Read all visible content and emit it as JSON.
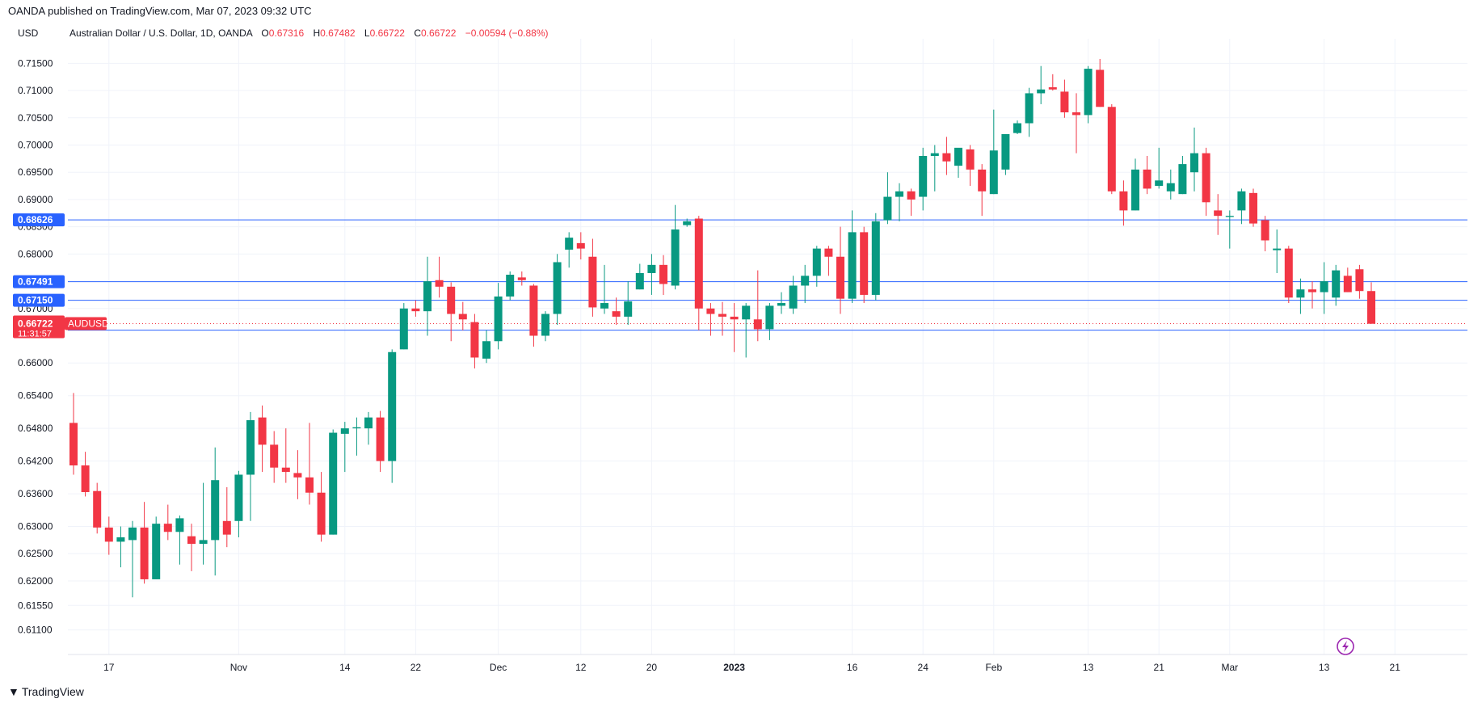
{
  "header": {
    "published": "OANDA published on TradingView.com, Mar 07, 2023 09:32 UTC",
    "currency": "USD",
    "instrument": "Australian Dollar / U.S. Dollar, 1D, OANDA",
    "o_label": "O",
    "o_value": "0.67316",
    "h_label": "H",
    "h_value": "0.67482",
    "l_label": "L",
    "l_value": "0.66722",
    "c_label": "C",
    "c_value": "0.66722",
    "change": "−0.00594 (−0.88%)"
  },
  "footer": {
    "brand": "TradingView"
  },
  "colors": {
    "up": "#089981",
    "down": "#f23645",
    "line": "#2962ff",
    "grid": "#f0f3fa"
  },
  "chart_data": {
    "type": "candlestick",
    "symbol": "AUDUSD",
    "ylim": [
      0.6065,
      0.7195
    ],
    "y_ticks": [
      "0.61100",
      "0.61550",
      "0.62000",
      "0.62500",
      "0.63000",
      "0.63600",
      "0.64200",
      "0.64800",
      "0.65400",
      "0.66000",
      "0.67000",
      "0.68000",
      "0.68500",
      "0.69000",
      "0.69500",
      "0.70000",
      "0.70500",
      "0.71000",
      "0.71500"
    ],
    "x_ticks": [
      {
        "label": "17",
        "index": 3
      },
      {
        "label": "Nov",
        "index": 14
      },
      {
        "label": "14",
        "index": 23
      },
      {
        "label": "22",
        "index": 29
      },
      {
        "label": "Dec",
        "index": 36
      },
      {
        "label": "12",
        "index": 43
      },
      {
        "label": "20",
        "index": 49
      },
      {
        "label": "2023",
        "index": 56,
        "bold": true
      },
      {
        "label": "16",
        "index": 66
      },
      {
        "label": "24",
        "index": 72
      },
      {
        "label": "Feb",
        "index": 78
      },
      {
        "label": "13",
        "index": 86
      },
      {
        "label": "21",
        "index": 92
      },
      {
        "label": "Mar",
        "index": 98
      },
      {
        "label": "13",
        "index": 106
      },
      {
        "label": "21",
        "index": 112
      }
    ],
    "horizontal_lines": [
      "0.68626",
      "0.67491",
      "0.67150",
      "0.66603"
    ],
    "last_price": "0.66722",
    "countdown": "11:31:57",
    "candles": [
      [
        0.649,
        0.6545,
        0.6395,
        0.6412
      ],
      [
        0.6412,
        0.6437,
        0.6355,
        0.6363
      ],
      [
        0.6365,
        0.638,
        0.6287,
        0.6298
      ],
      [
        0.6298,
        0.6318,
        0.6248,
        0.6272
      ],
      [
        0.6272,
        0.63,
        0.6225,
        0.628
      ],
      [
        0.6275,
        0.631,
        0.617,
        0.6298
      ],
      [
        0.6298,
        0.6345,
        0.6195,
        0.6203
      ],
      [
        0.6203,
        0.6318,
        0.6203,
        0.6305
      ],
      [
        0.6305,
        0.634,
        0.6275,
        0.629
      ],
      [
        0.629,
        0.632,
        0.623,
        0.6315
      ],
      [
        0.6282,
        0.6305,
        0.6218,
        0.6268
      ],
      [
        0.6268,
        0.638,
        0.623,
        0.6275
      ],
      [
        0.6275,
        0.6445,
        0.621,
        0.6385
      ],
      [
        0.631,
        0.6372,
        0.6262,
        0.6285
      ],
      [
        0.631,
        0.6402,
        0.628,
        0.6395
      ],
      [
        0.6395,
        0.651,
        0.631,
        0.6495
      ],
      [
        0.65,
        0.6522,
        0.64,
        0.645
      ],
      [
        0.645,
        0.6475,
        0.638,
        0.6408
      ],
      [
        0.6408,
        0.648,
        0.638,
        0.64
      ],
      [
        0.6398,
        0.644,
        0.635,
        0.639
      ],
      [
        0.639,
        0.649,
        0.634,
        0.6362
      ],
      [
        0.6362,
        0.64,
        0.6272,
        0.6285
      ],
      [
        0.6285,
        0.6478,
        0.6285,
        0.6472
      ],
      [
        0.647,
        0.6492,
        0.64,
        0.648
      ],
      [
        0.648,
        0.65,
        0.643,
        0.6482
      ],
      [
        0.648,
        0.651,
        0.645,
        0.65
      ],
      [
        0.65,
        0.6512,
        0.64,
        0.642
      ],
      [
        0.642,
        0.6625,
        0.638,
        0.662
      ],
      [
        0.6625,
        0.671,
        0.6625,
        0.67
      ],
      [
        0.67,
        0.6715,
        0.6685,
        0.6695
      ],
      [
        0.6695,
        0.6795,
        0.665,
        0.675
      ],
      [
        0.6752,
        0.6795,
        0.672,
        0.674
      ],
      [
        0.674,
        0.6748,
        0.664,
        0.669
      ],
      [
        0.669,
        0.6712,
        0.666,
        0.668
      ],
      [
        0.6675,
        0.669,
        0.659,
        0.661
      ],
      [
        0.6608,
        0.666,
        0.66,
        0.664
      ],
      [
        0.664,
        0.6747,
        0.6625,
        0.6722
      ],
      [
        0.6722,
        0.6768,
        0.6715,
        0.6762
      ],
      [
        0.6757,
        0.6768,
        0.6742,
        0.6752
      ],
      [
        0.6742,
        0.6745,
        0.663,
        0.665
      ],
      [
        0.665,
        0.6695,
        0.664,
        0.669
      ],
      [
        0.669,
        0.68,
        0.667,
        0.6785
      ],
      [
        0.6808,
        0.684,
        0.6775,
        0.683
      ],
      [
        0.682,
        0.684,
        0.679,
        0.681
      ],
      [
        0.6795,
        0.6828,
        0.6685,
        0.6702
      ],
      [
        0.67,
        0.678,
        0.669,
        0.671
      ],
      [
        0.6695,
        0.672,
        0.667,
        0.6685
      ],
      [
        0.6685,
        0.675,
        0.667,
        0.6713
      ],
      [
        0.6735,
        0.6782,
        0.6735,
        0.6765
      ],
      [
        0.6765,
        0.68,
        0.6725,
        0.678
      ],
      [
        0.678,
        0.6798,
        0.6725,
        0.6745
      ],
      [
        0.6742,
        0.689,
        0.6735,
        0.6845
      ],
      [
        0.6853,
        0.6865,
        0.685,
        0.686
      ],
      [
        0.6865,
        0.687,
        0.666,
        0.67
      ],
      [
        0.67,
        0.671,
        0.665,
        0.669
      ],
      [
        0.669,
        0.6712,
        0.665,
        0.6685
      ],
      [
        0.6685,
        0.671,
        0.662,
        0.668
      ],
      [
        0.668,
        0.671,
        0.661,
        0.6705
      ],
      [
        0.668,
        0.677,
        0.664,
        0.6662
      ],
      [
        0.6662,
        0.671,
        0.6642,
        0.6705
      ],
      [
        0.6705,
        0.673,
        0.669,
        0.671
      ],
      [
        0.67,
        0.676,
        0.669,
        0.6742
      ],
      [
        0.6742,
        0.678,
        0.671,
        0.676
      ],
      [
        0.676,
        0.6815,
        0.674,
        0.681
      ],
      [
        0.681,
        0.6815,
        0.676,
        0.6795
      ],
      [
        0.6795,
        0.685,
        0.669,
        0.6718
      ],
      [
        0.6718,
        0.688,
        0.671,
        0.684
      ],
      [
        0.684,
        0.685,
        0.671,
        0.6725
      ],
      [
        0.6725,
        0.6875,
        0.6715,
        0.686
      ],
      [
        0.6862,
        0.695,
        0.6855,
        0.6905
      ],
      [
        0.6905,
        0.693,
        0.686,
        0.6915
      ],
      [
        0.6915,
        0.692,
        0.687,
        0.69
      ],
      [
        0.6905,
        0.6995,
        0.688,
        0.698
      ],
      [
        0.698,
        0.7,
        0.6915,
        0.6985
      ],
      [
        0.6985,
        0.7015,
        0.6945,
        0.697
      ],
      [
        0.6962,
        0.699,
        0.694,
        0.6995
      ],
      [
        0.6992,
        0.7,
        0.6925,
        0.6955
      ],
      [
        0.6955,
        0.6965,
        0.687,
        0.6915
      ],
      [
        0.691,
        0.7065,
        0.691,
        0.699
      ],
      [
        0.6955,
        0.702,
        0.6945,
        0.702
      ],
      [
        0.7022,
        0.7045,
        0.702,
        0.704
      ],
      [
        0.704,
        0.7105,
        0.7015,
        0.7095
      ],
      [
        0.7095,
        0.7145,
        0.7075,
        0.7102
      ],
      [
        0.7106,
        0.713,
        0.71,
        0.7102
      ],
      [
        0.7098,
        0.712,
        0.705,
        0.706
      ],
      [
        0.706,
        0.7095,
        0.6985,
        0.7055
      ],
      [
        0.7055,
        0.7145,
        0.704,
        0.714
      ],
      [
        0.7138,
        0.7158,
        0.707,
        0.707
      ],
      [
        0.707,
        0.7075,
        0.691,
        0.6915
      ],
      [
        0.6915,
        0.6935,
        0.6852,
        0.688
      ],
      [
        0.688,
        0.6975,
        0.688,
        0.6955
      ],
      [
        0.6955,
        0.698,
        0.691,
        0.692
      ],
      [
        0.6925,
        0.6995,
        0.692,
        0.6935
      ],
      [
        0.6915,
        0.6955,
        0.69,
        0.693
      ],
      [
        0.691,
        0.698,
        0.691,
        0.6965
      ],
      [
        0.695,
        0.7032,
        0.6915,
        0.6985
      ],
      [
        0.6985,
        0.6995,
        0.687,
        0.6895
      ],
      [
        0.688,
        0.691,
        0.6835,
        0.687
      ],
      [
        0.6868,
        0.688,
        0.681,
        0.687
      ],
      [
        0.688,
        0.692,
        0.6855,
        0.6915
      ],
      [
        0.6912,
        0.692,
        0.685,
        0.6856
      ],
      [
        0.6862,
        0.687,
        0.6805,
        0.6825
      ],
      [
        0.6807,
        0.6845,
        0.6765,
        0.681
      ],
      [
        0.681,
        0.6815,
        0.671,
        0.672
      ],
      [
        0.672,
        0.6755,
        0.669,
        0.6735
      ],
      [
        0.6735,
        0.675,
        0.67,
        0.673
      ],
      [
        0.673,
        0.6785,
        0.669,
        0.675
      ],
      [
        0.672,
        0.678,
        0.6705,
        0.677
      ],
      [
        0.676,
        0.6775,
        0.673,
        0.673
      ],
      [
        0.6772,
        0.678,
        0.6718,
        0.6732
      ],
      [
        0.6732,
        0.6748,
        0.6672,
        0.6672
      ]
    ]
  }
}
